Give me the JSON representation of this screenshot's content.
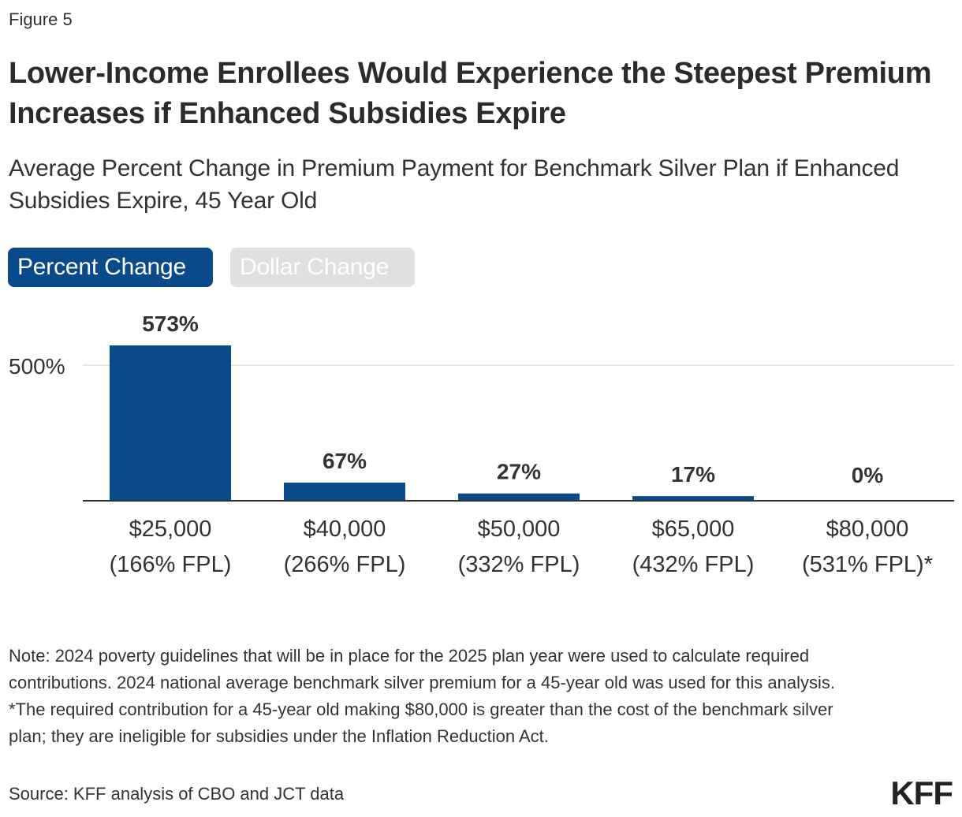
{
  "figure_label": "Figure 5",
  "title": "Lower-Income Enrollees Would Experience the Steepest Premium Increases if Enhanced Subsidies Expire",
  "subtitle": "Average Percent Change in Premium Payment for Benchmark Silver Plan if Enhanced Subsidies Expire, 45 Year Old",
  "toggles": {
    "percent_label": "Percent Change",
    "dollar_label": "Dollar Change"
  },
  "chart_data": {
    "type": "bar",
    "categories": [
      [
        "$25,000",
        "(166% FPL)"
      ],
      [
        "$40,000",
        "(266% FPL)"
      ],
      [
        "$50,000",
        "(332% FPL)"
      ],
      [
        "$65,000",
        "(432% FPL)"
      ],
      [
        "$80,000",
        "(531% FPL)*"
      ]
    ],
    "values": [
      573,
      67,
      27,
      17,
      0
    ],
    "data_labels": [
      "573%",
      "67%",
      "27%",
      "17%",
      "0%"
    ],
    "ylim": [
      0,
      573
    ],
    "yticks": [
      500
    ],
    "ytick_labels": [
      "500%"
    ],
    "grid": true,
    "bar_color": "#0b4a8a"
  },
  "notes": [
    "Note: 2024 poverty guidelines that will be in place for the 2025 plan year were used to calculate required contributions. 2024 national average benchmark silver premium for a 45-year old was used for this analysis.",
    "*The required contribution for a 45-year old making $80,000 is greater than the cost of the benchmark silver plan; they are ineligible for subsidies under the Inflation Reduction Act."
  ],
  "source": "Source: KFF analysis of CBO and JCT data",
  "logo_text": "KFF"
}
